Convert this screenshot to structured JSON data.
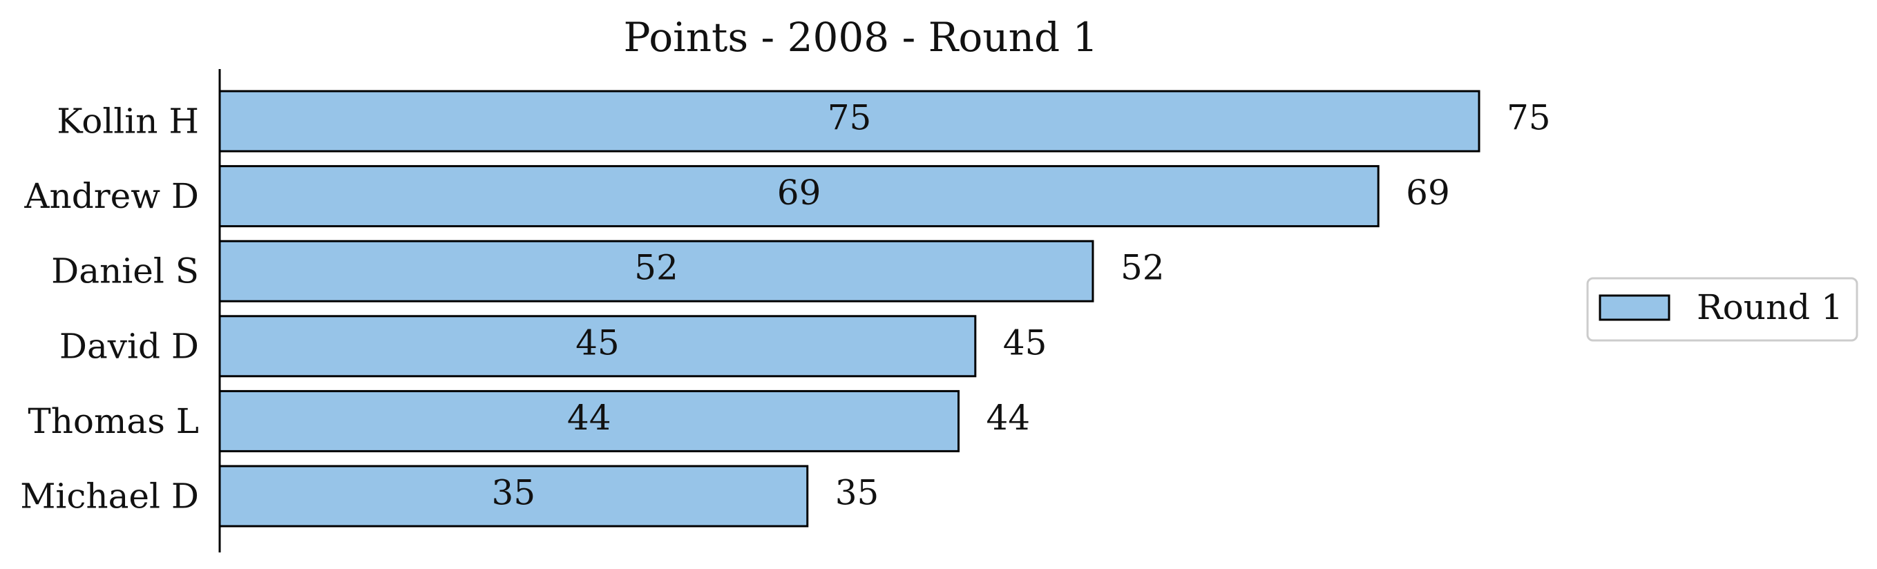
{
  "chart_data": {
    "type": "bar",
    "orientation": "horizontal",
    "title": "Points - 2008 - Round 1",
    "xlabel": "",
    "ylabel": "",
    "categories": [
      "Kollin H",
      "Andrew D",
      "Daniel S",
      "David D",
      "Thomas L",
      "Michael D"
    ],
    "series": [
      {
        "name": "Round 1",
        "values": [
          75,
          69,
          52,
          45,
          44,
          35
        ],
        "color": "#97c4e8",
        "edge_color": "#000000"
      }
    ],
    "xlim": [
      0,
      75
    ],
    "x_ticks_visible": false,
    "grid": false,
    "legend_position": "right",
    "data_labels": [
      "inside-center",
      "outside-end"
    ]
  }
}
